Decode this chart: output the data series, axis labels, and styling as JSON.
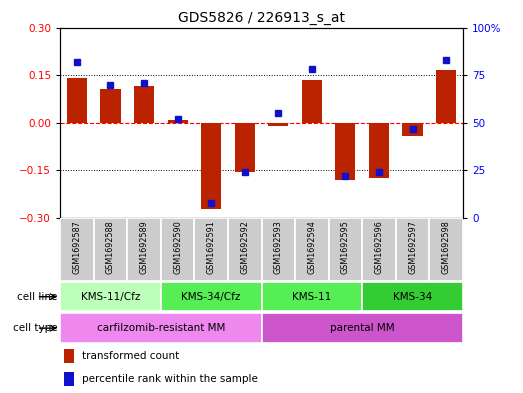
{
  "title": "GDS5826 / 226913_s_at",
  "samples": [
    "GSM1692587",
    "GSM1692588",
    "GSM1692589",
    "GSM1692590",
    "GSM1692591",
    "GSM1692592",
    "GSM1692593",
    "GSM1692594",
    "GSM1692595",
    "GSM1692596",
    "GSM1692597",
    "GSM1692598"
  ],
  "transformed_count": [
    0.14,
    0.105,
    0.115,
    0.01,
    -0.27,
    -0.155,
    -0.01,
    0.135,
    -0.18,
    -0.175,
    -0.04,
    0.165
  ],
  "percentile_rank": [
    82,
    70,
    71,
    52,
    8,
    24,
    55,
    78,
    22,
    24,
    47,
    83
  ],
  "ylim_left": [
    -0.3,
    0.3
  ],
  "ylim_right": [
    0,
    100
  ],
  "yticks_left": [
    -0.3,
    -0.15,
    0,
    0.15,
    0.3
  ],
  "yticks_right": [
    0,
    25,
    50,
    75,
    100
  ],
  "bar_color": "#bb2200",
  "dot_color": "#1111cc",
  "sample_box_color": "#cccccc",
  "cell_line_groups": [
    {
      "label": "KMS-11/Cfz",
      "start": 0,
      "end": 3,
      "color": "#bbffbb"
    },
    {
      "label": "KMS-34/Cfz",
      "start": 3,
      "end": 6,
      "color": "#55ee55"
    },
    {
      "label": "KMS-11",
      "start": 6,
      "end": 9,
      "color": "#55ee55"
    },
    {
      "label": "KMS-34",
      "start": 9,
      "end": 12,
      "color": "#33cc33"
    }
  ],
  "cell_type_groups": [
    {
      "label": "carfilzomib-resistant MM",
      "start": 0,
      "end": 6,
      "color": "#ee88ee"
    },
    {
      "label": "parental MM",
      "start": 6,
      "end": 12,
      "color": "#cc55cc"
    }
  ],
  "legend_items": [
    {
      "label": "transformed count",
      "color": "#bb2200"
    },
    {
      "label": "percentile rank within the sample",
      "color": "#1111cc"
    }
  ]
}
